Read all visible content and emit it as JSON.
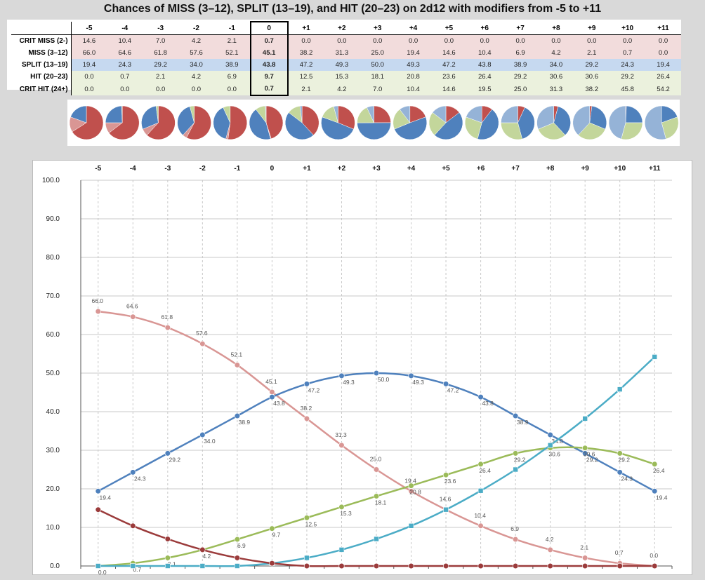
{
  "title": "Chances of MISS (3–12), SPLIT (13–19), and HIT (20–23) on 2d12 with modifiers from -5 to +11",
  "table": {
    "columns": [
      "-5",
      "-4",
      "-3",
      "-2",
      "-1",
      "0",
      "+1",
      "+2",
      "+3",
      "+4",
      "+5",
      "+6",
      "+7",
      "+8",
      "+9",
      "+10",
      "+11"
    ],
    "rows": [
      {
        "label": "CRIT MISS (2-)",
        "values": [
          "14.6",
          "10.4",
          "7.0",
          "4.2",
          "2.1",
          "0.7",
          "0.0",
          "0.0",
          "0.0",
          "0.0",
          "0.0",
          "0.0",
          "0.0",
          "0.0",
          "0.0",
          "0.0",
          "0.0"
        ]
      },
      {
        "label": "MISS (3–12)",
        "values": [
          "66.0",
          "64.6",
          "61.8",
          "57.6",
          "52.1",
          "45.1",
          "38.2",
          "31.3",
          "25.0",
          "19.4",
          "14.6",
          "10.4",
          "6.9",
          "4.2",
          "2.1",
          "0.7",
          "0.0"
        ]
      },
      {
        "label": "SPLIT (13–19)",
        "values": [
          "19.4",
          "24.3",
          "29.2",
          "34.0",
          "38.9",
          "43.8",
          "47.2",
          "49.3",
          "50.0",
          "49.3",
          "47.2",
          "43.8",
          "38.9",
          "34.0",
          "29.2",
          "24.3",
          "19.4"
        ]
      },
      {
        "label": "HIT (20–23)",
        "values": [
          "0.0",
          "0.7",
          "2.1",
          "4.2",
          "6.9",
          "9.7",
          "12.5",
          "15.3",
          "18.1",
          "20.8",
          "23.6",
          "26.4",
          "29.2",
          "30.6",
          "30.6",
          "29.2",
          "26.4"
        ]
      },
      {
        "label": "CRIT HIT (24+)",
        "values": [
          "0.0",
          "0.0",
          "0.0",
          "0.0",
          "0.0",
          "0.7",
          "2.1",
          "4.2",
          "7.0",
          "10.4",
          "14.6",
          "19.5",
          "25.0",
          "31.3",
          "38.2",
          "45.8",
          "54.2"
        ]
      }
    ]
  },
  "colors": {
    "crit_miss": "#9b3b3b",
    "miss": "#d99694",
    "split": "#4f81bd",
    "hit": "#9bbb59",
    "crit_hit": "#4bacc6",
    "pie_crit_miss": "#d99694",
    "pie_miss": "#c0504d",
    "pie_split": "#4f81bd",
    "pie_hit": "#c3d69b",
    "pie_crit_hit": "#95b3d7"
  },
  "chart_data": {
    "type": "line",
    "x": [
      "-5",
      "-4",
      "-3",
      "-2",
      "-1",
      "0",
      "+1",
      "+2",
      "+3",
      "+4",
      "+5",
      "+6",
      "+7",
      "+8",
      "+9",
      "+10",
      "+11"
    ],
    "ylim": [
      0,
      100
    ],
    "yticks": [
      "0.0",
      "10.0",
      "20.0",
      "30.0",
      "40.0",
      "50.0",
      "60.0",
      "70.0",
      "80.0",
      "90.0",
      "100.0"
    ],
    "grid": "horizontal",
    "legend": "none",
    "series": [
      {
        "key": "miss",
        "marker": "circle",
        "labels": true,
        "values": [
          66.0,
          64.6,
          61.8,
          57.6,
          52.1,
          45.1,
          38.2,
          31.3,
          25.0,
          19.4,
          14.6,
          10.4,
          6.9,
          4.2,
          2.1,
          0.7,
          0.0
        ]
      },
      {
        "key": "split",
        "marker": "circle",
        "labels": true,
        "values": [
          19.4,
          24.3,
          29.2,
          34.0,
          38.9,
          43.8,
          47.2,
          49.3,
          50.0,
          49.3,
          47.2,
          43.8,
          38.9,
          34.0,
          29.2,
          24.3,
          19.4
        ]
      },
      {
        "key": "hit",
        "marker": "circle",
        "labels": true,
        "values": [
          0.0,
          0.7,
          2.1,
          4.2,
          6.9,
          9.7,
          12.5,
          15.3,
          18.1,
          20.8,
          23.6,
          26.4,
          29.2,
          30.6,
          30.6,
          29.2,
          26.4
        ]
      },
      {
        "key": "crit_hit",
        "marker": "square",
        "labels": false,
        "values": [
          0.0,
          0.0,
          0.0,
          0.0,
          0.0,
          0.7,
          2.1,
          4.2,
          7.0,
          10.4,
          14.6,
          19.5,
          25.0,
          31.3,
          38.2,
          45.8,
          54.2
        ]
      },
      {
        "key": "crit_miss",
        "marker": "circle",
        "labels": false,
        "values": [
          14.6,
          10.4,
          7.0,
          4.2,
          2.1,
          0.7,
          0.0,
          0.0,
          0.0,
          0.0,
          0.0,
          0.0,
          0.0,
          0.0,
          0.0,
          0.0,
          0.0
        ]
      }
    ]
  }
}
